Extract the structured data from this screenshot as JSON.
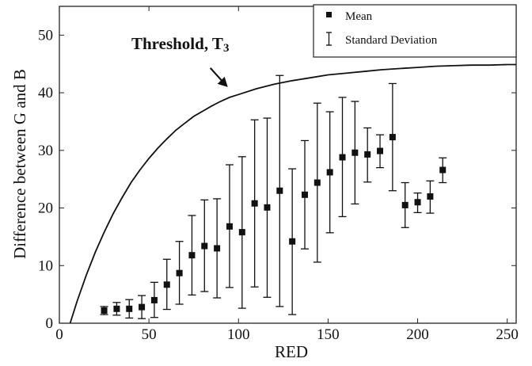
{
  "chart_data": {
    "type": "scatter",
    "xlabel": "RED",
    "ylabel": "Difference between G and B",
    "xlim": [
      0,
      255
    ],
    "ylim": [
      0,
      55
    ],
    "xticks": [
      "0",
      "50",
      "100",
      "150",
      "200",
      "250"
    ],
    "yticks": [
      "0",
      "10",
      "20",
      "30",
      "40",
      "50"
    ],
    "grid": false,
    "legend": {
      "position": "top-right",
      "entries": [
        {
          "label": "Mean",
          "marker": "square"
        },
        {
          "label": "Standard Deviation",
          "marker": "errorbar"
        }
      ]
    },
    "annotation": {
      "text": "Threshold, T",
      "subscript": "3",
      "points_to": {
        "x": 94,
        "y": 41
      }
    },
    "threshold_curve": {
      "x": [
        6,
        10,
        15,
        20,
        25,
        30,
        35,
        40,
        45,
        50,
        55,
        60,
        65,
        70,
        75,
        80,
        85,
        90,
        95,
        100,
        110,
        120,
        130,
        140,
        150,
        160,
        170,
        180,
        190,
        200,
        210,
        220,
        230,
        240,
        250,
        255
      ],
      "y": [
        0,
        3.9,
        8.3,
        12.3,
        15.8,
        19.0,
        21.8,
        24.4,
        26.6,
        28.6,
        30.4,
        32.0,
        33.5,
        34.7,
        35.9,
        36.8,
        37.7,
        38.5,
        39.2,
        39.7,
        40.7,
        41.5,
        42.1,
        42.6,
        43.1,
        43.4,
        43.7,
        44.0,
        44.2,
        44.4,
        44.6,
        44.7,
        44.8,
        44.8,
        44.9,
        44.9
      ]
    },
    "series": [
      {
        "name": "Mean",
        "x": [
          25,
          32,
          39,
          46,
          53,
          60,
          67,
          74,
          81,
          88,
          95,
          102,
          109,
          116,
          123,
          130,
          137,
          144,
          151,
          158,
          165,
          172,
          179,
          186,
          193,
          200,
          207,
          214
        ],
        "y": [
          2.2,
          2.5,
          2.5,
          2.8,
          4.0,
          6.7,
          8.7,
          11.8,
          13.4,
          13.0,
          16.8,
          15.8,
          20.8,
          20.1,
          23.0,
          14.2,
          22.3,
          24.4,
          26.2,
          28.8,
          29.6,
          29.3,
          29.9,
          32.3,
          20.5,
          21.0,
          22.0,
          26.6
        ],
        "std_low": [
          1.5,
          1.4,
          0.9,
          0.8,
          1.0,
          2.4,
          3.3,
          4.9,
          5.5,
          4.4,
          6.2,
          2.6,
          6.3,
          4.5,
          2.9,
          1.5,
          12.9,
          10.6,
          15.7,
          18.5,
          20.7,
          24.5,
          27.0,
          23.0,
          16.6,
          19.2,
          19.1,
          24.4
        ],
        "std_high": [
          2.9,
          3.6,
          4.1,
          4.8,
          7.1,
          11.1,
          14.2,
          18.7,
          21.4,
          21.6,
          27.5,
          28.9,
          35.3,
          35.6,
          43.0,
          26.8,
          31.7,
          38.2,
          36.7,
          39.2,
          38.5,
          33.9,
          32.7,
          41.6,
          24.4,
          22.6,
          24.7,
          28.7
        ]
      }
    ]
  }
}
